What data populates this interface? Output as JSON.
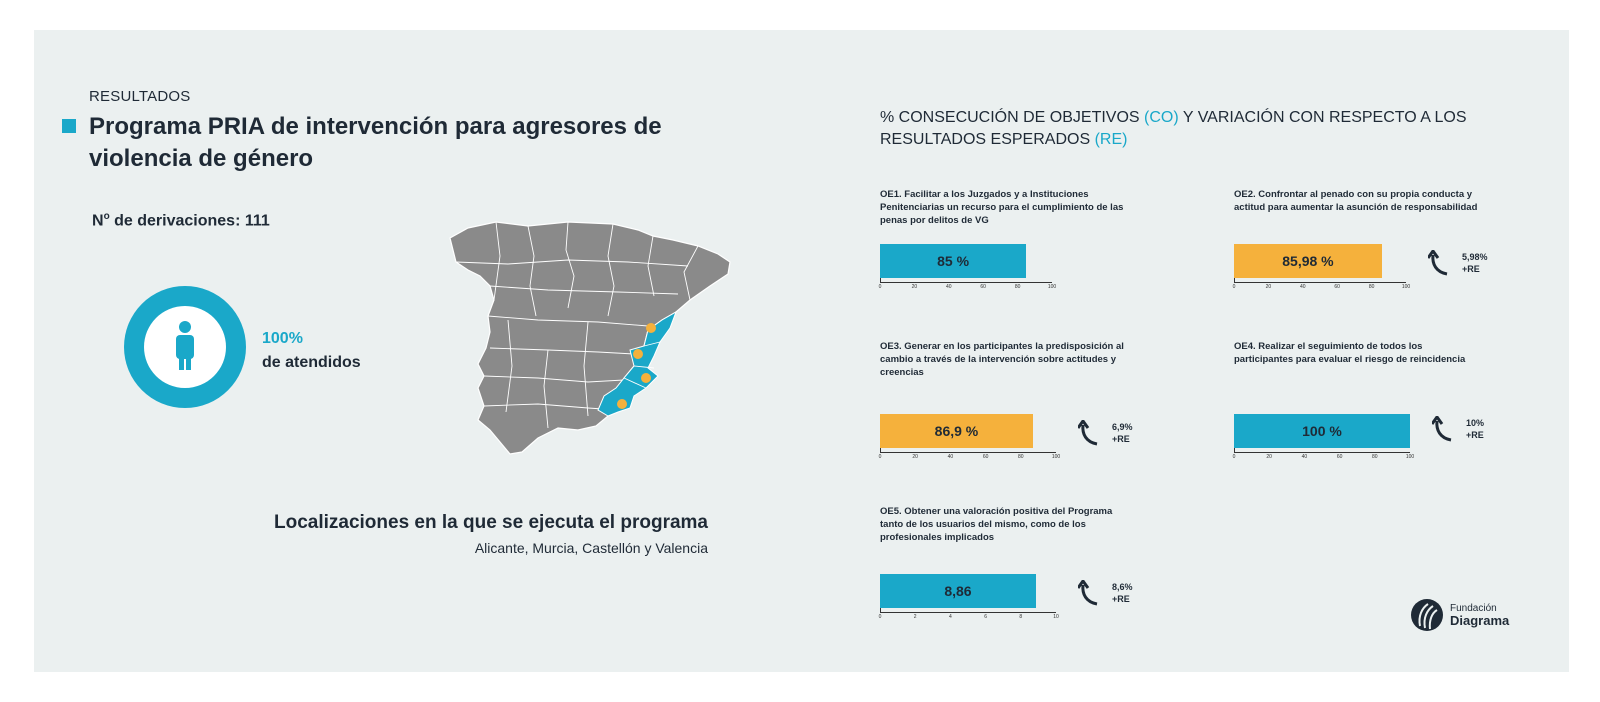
{
  "header": {
    "section_label": "RESULTADOS",
    "title": "Programa PRIA de intervención para agresores de violencia de género"
  },
  "derivaciones": {
    "label": "N",
    "sup": "o",
    "text": " de derivaciones: 111"
  },
  "attended": {
    "percent": "100%",
    "label": "de atendidos",
    "icon": "person-icon"
  },
  "map": {
    "icon": "spain-provinces-map",
    "highlight_color": "#1aa8c9",
    "marker_color": "#f5b13c",
    "base_color": "#8a8a8a"
  },
  "locations": {
    "title": "Localizaciones en la que se ejecuta el programa",
    "list": "Alicante, Murcia, Castellón y Valencia"
  },
  "right_title": {
    "part1": "% CONSECUCIÓN DE OBJETIVOS ",
    "co": "(CO)",
    "part2": " Y VARIACIÓN CON RESPECTO A LOS RESULTADOS ESPERADOS ",
    "re": "(RE)"
  },
  "colors": {
    "blue": "#1aa8c9",
    "orange": "#f5b13c",
    "dark": "#1f2a36",
    "panel": "#ebf0f0"
  },
  "chart_data": [
    {
      "type": "bar",
      "title": "OE1. Facilitar a los Juzgados y a Instituciones Penitenciarias un recurso para el cumplimiento de las penas por delitos de VG",
      "values": [
        85
      ],
      "value_label": "85 %",
      "xlim": [
        0,
        100
      ],
      "ticks": [
        "0",
        "20",
        "40",
        "60",
        "80",
        "100"
      ],
      "color": "#1aa8c9",
      "delta": null
    },
    {
      "type": "bar",
      "title": "OE2. Confrontar al penado con su propia conducta y actitud para aumentar la asunción de responsabilidad",
      "values": [
        85.98
      ],
      "value_label": "85,98 %",
      "xlim": [
        0,
        100
      ],
      "ticks": [
        "0",
        "20",
        "40",
        "60",
        "80",
        "100"
      ],
      "color": "#f5b13c",
      "delta": {
        "value": "5,98%",
        "label": "+RE"
      }
    },
    {
      "type": "bar",
      "title": "OE3. Generar en los participantes la predisposición al cambio a través de la intervención sobre actitudes y creencias",
      "values": [
        86.9
      ],
      "value_label": "86,9 %",
      "xlim": [
        0,
        100
      ],
      "ticks": [
        "0",
        "20",
        "40",
        "60",
        "80",
        "100"
      ],
      "color": "#f5b13c",
      "delta": {
        "value": "6,9%",
        "label": "+RE"
      }
    },
    {
      "type": "bar",
      "title": "OE4. Realizar el seguimiento de todos los participantes para evaluar el riesgo de reincidencia",
      "values": [
        100
      ],
      "value_label": "100 %",
      "xlim": [
        0,
        100
      ],
      "ticks": [
        "0",
        "20",
        "40",
        "60",
        "80",
        "100"
      ],
      "color": "#1aa8c9",
      "delta": {
        "value": "10%",
        "label": "+RE"
      }
    },
    {
      "type": "bar",
      "title": "OE5. Obtener una valoración positiva del Programa tanto de los usuarios del mismo, como de los profesionales implicados",
      "values": [
        8.86
      ],
      "value_label": "8,86",
      "xlim": [
        0,
        10
      ],
      "ticks": [
        "0",
        "2",
        "4",
        "6",
        "8",
        "10"
      ],
      "color": "#1aa8c9",
      "delta": {
        "value": "8,6%",
        "label": "+RE"
      }
    }
  ],
  "logo": {
    "line1": "Fundación",
    "line2": "Diagrama",
    "icon": "diagrama-logo-icon"
  }
}
